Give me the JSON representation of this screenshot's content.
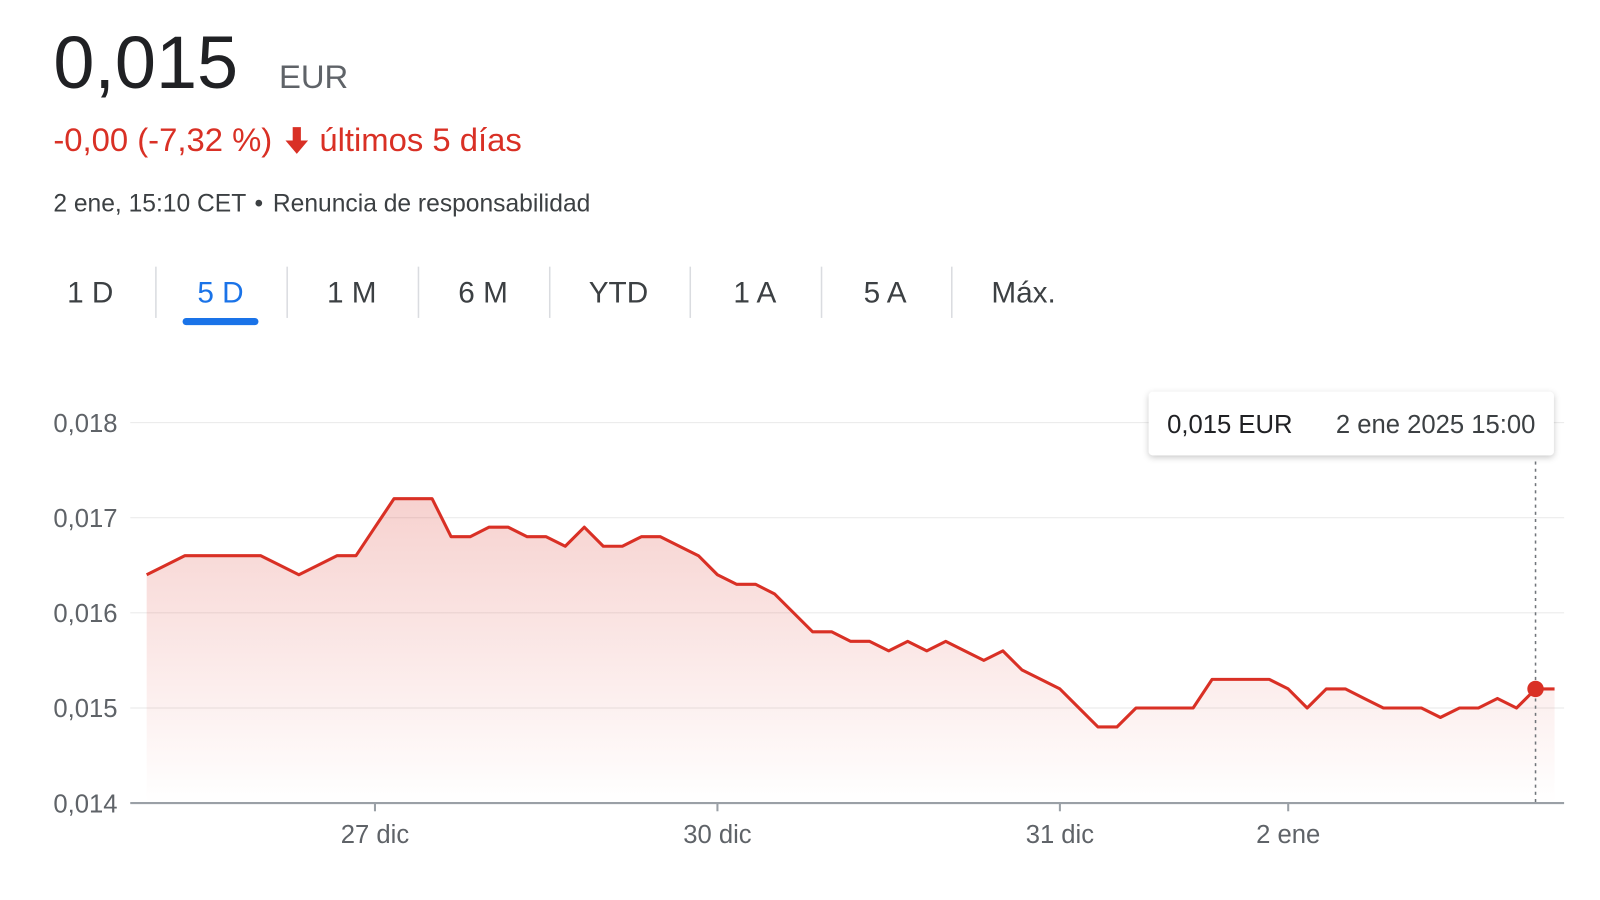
{
  "header": {
    "price": "0,015",
    "currency": "EUR",
    "change": "-0,00 (-7,32 %)",
    "period": "últimos 5 días",
    "timestamp": "2 ene, 15:10 CET",
    "disclaimer": "Renuncia de responsabilidad"
  },
  "tabs": {
    "items": [
      "1 D",
      "5 D",
      "1 M",
      "6 M",
      "YTD",
      "1 A",
      "5 A",
      "Máx."
    ],
    "selected": 1
  },
  "chart_data": {
    "type": "line",
    "categories": [
      null,
      null,
      null,
      null,
      null,
      null,
      null,
      null,
      null,
      null,
      null,
      null,
      "27 dic",
      null,
      null,
      null,
      null,
      null,
      null,
      null,
      null,
      null,
      null,
      null,
      null,
      null,
      null,
      null,
      null,
      null,
      "30 dic",
      null,
      null,
      null,
      null,
      null,
      null,
      null,
      null,
      null,
      null,
      null,
      null,
      null,
      null,
      null,
      null,
      null,
      "31 dic",
      null,
      null,
      null,
      null,
      null,
      null,
      null,
      null,
      null,
      null,
      null,
      "2 ene",
      null,
      null,
      null,
      null,
      null,
      null,
      null,
      null,
      null,
      null,
      null,
      null,
      null,
      null
    ],
    "values": [
      0.0164,
      0.0165,
      0.0166,
      0.0166,
      0.0166,
      0.0166,
      0.0166,
      0.0165,
      0.0164,
      0.0165,
      0.0166,
      0.0166,
      0.0169,
      0.0172,
      0.0172,
      0.0172,
      0.0168,
      0.0168,
      0.0169,
      0.0169,
      0.0168,
      0.0168,
      0.0167,
      0.0169,
      0.0167,
      0.0167,
      0.0168,
      0.0168,
      0.0167,
      0.0166,
      0.0164,
      0.0163,
      0.0163,
      0.0162,
      0.016,
      0.0158,
      0.0158,
      0.0157,
      0.0157,
      0.0156,
      0.0157,
      0.0156,
      0.0157,
      0.0156,
      0.0155,
      0.0156,
      0.0154,
      0.0153,
      0.0152,
      0.015,
      0.0148,
      0.0148,
      0.015,
      0.015,
      0.015,
      0.015,
      0.0153,
      0.0153,
      0.0153,
      0.0153,
      0.0152,
      0.015,
      0.0152,
      0.0152,
      0.0151,
      0.015,
      0.015,
      0.015,
      0.0149,
      0.015,
      0.015,
      0.0151,
      0.015,
      0.0152,
      0.0152
    ],
    "color": "#d93025",
    "ylim": [
      0.014,
      0.018
    ],
    "yticks": [
      {
        "value": 0.014,
        "label": "0,014"
      },
      {
        "value": 0.015,
        "label": "0,015"
      },
      {
        "value": 0.016,
        "label": "0,016"
      },
      {
        "value": 0.017,
        "label": "0,017"
      },
      {
        "value": 0.018,
        "label": "0,018"
      }
    ],
    "grid": true,
    "tooltip": {
      "value_label": "0,015 EUR",
      "date": "2 ene 2025 15:00"
    }
  }
}
